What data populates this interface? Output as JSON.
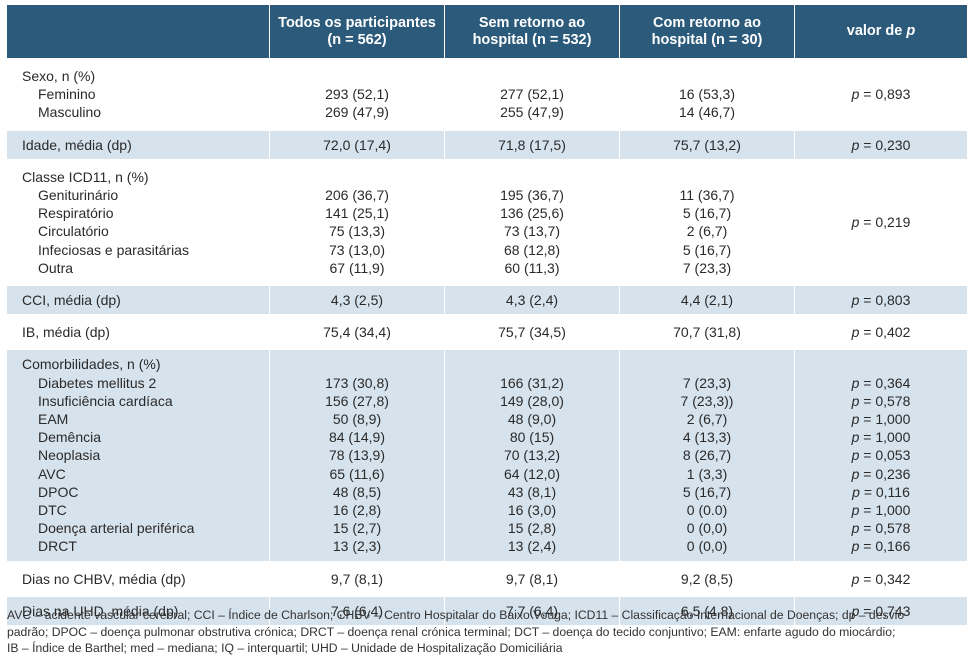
{
  "header": {
    "col0": "",
    "col1_l1": "Todos os participantes",
    "col1_l2": "(n = 562)",
    "col2_l1": "Sem retorno ao",
    "col2_l2": "hospital (n = 532)",
    "col3_l1": "Com retorno ao",
    "col3_l2": "hospital (n = 30)",
    "col4_pre": "valor de ",
    "col4_p": "p"
  },
  "sexo": {
    "title": "Sexo, n (%)",
    "rows": [
      {
        "label": "Feminino",
        "all": "293 (52,1)",
        "sem": "277 (52,1)",
        "com": "16 (53,3)"
      },
      {
        "label": "Masculino",
        "all": "269 (47,9)",
        "sem": "255 (47,9)",
        "com": "14 (46,7)"
      }
    ],
    "p": "= 0,893"
  },
  "idade": {
    "label": "Idade, média (dp)",
    "all": "72,0 (17,4)",
    "sem": "71,8 (17,5)",
    "com": "75,7 (13,2)",
    "p": "= 0,230"
  },
  "classe": {
    "title": "Classe ICD11, n (%)",
    "rows": [
      {
        "label": "Geniturinário",
        "all": "206 (36,7)",
        "sem": "195 (36,7)",
        "com": "11 (36,7)"
      },
      {
        "label": "Respiratório",
        "all": "141 (25,1)",
        "sem": "136 (25,6)",
        "com": "5 (16,7)"
      },
      {
        "label": "Circulatório",
        "all": "75 (13,3)",
        "sem": "73 (13,7)",
        "com": "2 (6,7)"
      },
      {
        "label": "Infeciosas e parasitárias",
        "all": "73 (13,0)",
        "sem": "68 (12,8)",
        "com": "5 (16,7)"
      },
      {
        "label": "Outra",
        "all": "67 (11,9)",
        "sem": "60 (11,3)",
        "com": "7 (23,3)"
      }
    ],
    "p": "= 0,219"
  },
  "cci": {
    "label": "CCI, média (dp)",
    "all": "4,3 (2,5)",
    "sem": "4,3 (2,4)",
    "com": "4,4 (2,1)",
    "p": "= 0,803"
  },
  "ib": {
    "label": "IB, média (dp)",
    "all": "75,4 (34,4)",
    "sem": "75,7 (34,5)",
    "com": "70,7 (31,8)",
    "p": "= 0,402"
  },
  "comorb": {
    "title": "Comorbilidades, n (%)",
    "rows": [
      {
        "label": "Diabetes mellitus 2",
        "all": "173 (30,8)",
        "sem": "166 (31,2)",
        "com": "7 (23,3)",
        "p": "= 0,364"
      },
      {
        "label": "Insuficiência cardíaca",
        "all": "156 (27,8)",
        "sem": "149 (28,0)",
        "com": "7 (23,3))",
        "p": "= 0,578"
      },
      {
        "label": "EAM",
        "all": "50 (8,9)",
        "sem": "48 (9,0)",
        "com": "2 (6,7)",
        "p": "= 1,000"
      },
      {
        "label": "Demência",
        "all": "84 (14,9)",
        "sem": "80 (15)",
        "com": "4 (13,3)",
        "p": "= 1,000"
      },
      {
        "label": "Neoplasia",
        "all": "78 (13,9)",
        "sem": "70 (13,2)",
        "com": "8 (26,7)",
        "p": "= 0,053"
      },
      {
        "label": "AVC",
        "all": "65 (11,6)",
        "sem": "64 (12,0)",
        "com": "1 (3,3)",
        "p": "= 0,236"
      },
      {
        "label": "DPOC",
        "all": "48 (8,5)",
        "sem": "43 (8,1)",
        "com": "5 (16,7)",
        "p": "= 0,116"
      },
      {
        "label": "DTC",
        "all": "16 (2,8)",
        "sem": "16 (3,0)",
        "com": "0 (0.0)",
        "p": "= 1,000"
      },
      {
        "label": "Doença arterial periférica",
        "all": "15 (2,7)",
        "sem": "15 (2,8)",
        "com": "0 (0,0)",
        "p": "= 0,578"
      },
      {
        "label": "DRCT",
        "all": "13 (2,3)",
        "sem": "13 (2,4)",
        "com": "0 (0,0)",
        "p": "= 0,166"
      }
    ]
  },
  "chbv": {
    "label": "Dias no CHBV, média (dp)",
    "all": "9,7 (8,1)",
    "sem": "9,7 (8,1)",
    "com": "9,2 (8,5)",
    "p": "= 0,342"
  },
  "uhd": {
    "label": "Dias na UHD, média (dp)",
    "all": "7,6 (6,4)",
    "sem": "7,7 (6,4)",
    "com": "6,5 (4,8)",
    "p": "= 0,743"
  },
  "p_symbol": "p",
  "footnote": {
    "line1": "AVC – acidente vascular cerebral; CCI – Índice de Charlson; CHBV – Centro Hospitalar do Baixo Vouga; ICD11 – Classificação Internacional de Doenças; dp – desvio",
    "line2": "padrão; DPOC – doença pulmonar obstrutiva crónica; DRCT – doença renal crónica terminal; DCT – doença do tecido conjuntivo; EAM: enfarte agudo do miocárdio;",
    "line3": "IB – Índice de Barthel; med – mediana; IQ – interquartil; UHD – Unidade de Hospitalização Domiciliária"
  }
}
